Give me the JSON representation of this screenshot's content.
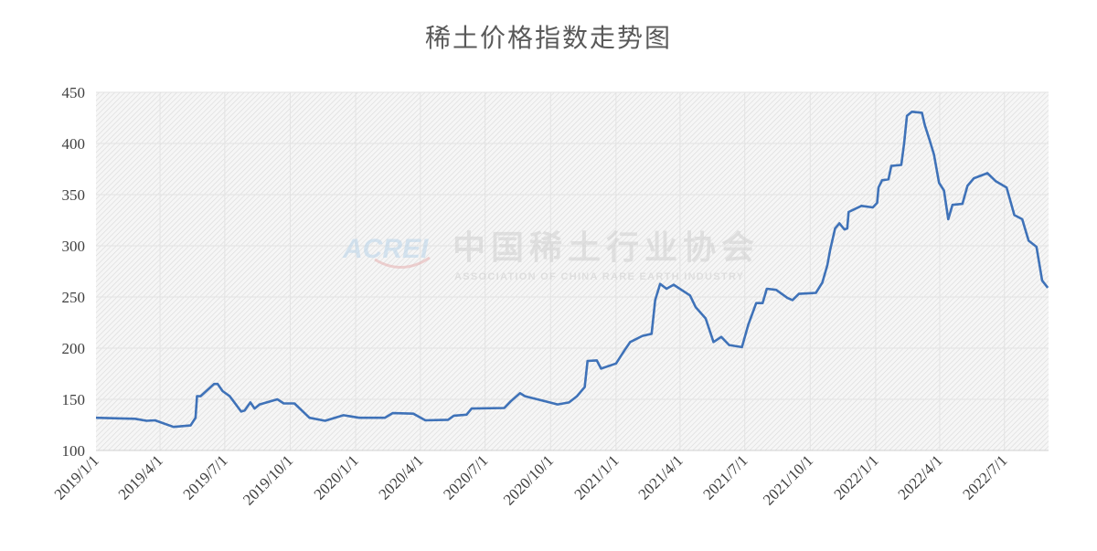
{
  "chart_data": {
    "type": "line",
    "title": "稀土价格指数走势图",
    "xlabel": "",
    "ylabel": "",
    "ylim": [
      100,
      450
    ],
    "yticks": [
      100,
      150,
      200,
      250,
      300,
      350,
      400,
      450
    ],
    "xlim": [
      "2019-01-01",
      "2022-09-01"
    ],
    "xtick_labels": [
      "2019/1/1",
      "2019/4/1",
      "2019/7/1",
      "2019/10/1",
      "2020/1/1",
      "2020/4/1",
      "2020/7/1",
      "2020/10/1",
      "2021/1/1",
      "2021/4/1",
      "2021/7/1",
      "2021/10/1",
      "2022/1/1",
      "2022/4/1",
      "2022/7/1"
    ],
    "grid": true,
    "legend": "none",
    "line_color": "#3f72b8",
    "points": [
      [
        "2019-01-01",
        132
      ],
      [
        "2019-02-25",
        131
      ],
      [
        "2019-03-13",
        129
      ],
      [
        "2019-03-25",
        129.5
      ],
      [
        "2019-04-20",
        123
      ],
      [
        "2019-05-14",
        124.5
      ],
      [
        "2019-05-21",
        132
      ],
      [
        "2019-05-23",
        153
      ],
      [
        "2019-05-28",
        153
      ],
      [
        "2019-06-16",
        165
      ],
      [
        "2019-06-21",
        165
      ],
      [
        "2019-06-28",
        158
      ],
      [
        "2019-07-08",
        153
      ],
      [
        "2019-07-24",
        138
      ],
      [
        "2019-07-29",
        139
      ],
      [
        "2019-08-06",
        147
      ],
      [
        "2019-08-12",
        141
      ],
      [
        "2019-08-19",
        145
      ],
      [
        "2019-09-13",
        150
      ],
      [
        "2019-09-22",
        146
      ],
      [
        "2019-10-07",
        146
      ],
      [
        "2019-10-28",
        132
      ],
      [
        "2019-11-19",
        129
      ],
      [
        "2019-12-15",
        134.5
      ],
      [
        "2020-01-06",
        132
      ],
      [
        "2020-02-11",
        132
      ],
      [
        "2020-02-22",
        136.5
      ],
      [
        "2020-03-22",
        136
      ],
      [
        "2020-04-08",
        129.5
      ],
      [
        "2020-05-10",
        130
      ],
      [
        "2020-05-18",
        134
      ],
      [
        "2020-06-05",
        135
      ],
      [
        "2020-06-12",
        141
      ],
      [
        "2020-07-28",
        141.5
      ],
      [
        "2020-08-06",
        148
      ],
      [
        "2020-08-19",
        156
      ],
      [
        "2020-08-26",
        153
      ],
      [
        "2020-09-24",
        148
      ],
      [
        "2020-10-11",
        145
      ],
      [
        "2020-10-27",
        147
      ],
      [
        "2020-11-07",
        153
      ],
      [
        "2020-11-18",
        162
      ],
      [
        "2020-11-22",
        187.5
      ],
      [
        "2020-12-05",
        188
      ],
      [
        "2020-12-11",
        180
      ],
      [
        "2021-01-01",
        185
      ],
      [
        "2021-01-14",
        199
      ],
      [
        "2021-01-21",
        206
      ],
      [
        "2021-02-07",
        212
      ],
      [
        "2021-02-20",
        214
      ],
      [
        "2021-02-25",
        247
      ],
      [
        "2021-03-04",
        262.8
      ],
      [
        "2021-03-13",
        258
      ],
      [
        "2021-03-23",
        262
      ],
      [
        "2021-04-15",
        251.5
      ],
      [
        "2021-04-23",
        240
      ],
      [
        "2021-05-07",
        229
      ],
      [
        "2021-05-18",
        206
      ],
      [
        "2021-05-29",
        211
      ],
      [
        "2021-06-09",
        203
      ],
      [
        "2021-06-27",
        201
      ],
      [
        "2021-07-06",
        223
      ],
      [
        "2021-07-17",
        244
      ],
      [
        "2021-07-26",
        244
      ],
      [
        "2021-08-01",
        258
      ],
      [
        "2021-08-14",
        257
      ],
      [
        "2021-08-30",
        249
      ],
      [
        "2021-09-06",
        247
      ],
      [
        "2021-09-15",
        253
      ],
      [
        "2021-10-09",
        254
      ],
      [
        "2021-10-18",
        264
      ],
      [
        "2021-10-25",
        281
      ],
      [
        "2021-10-29",
        296
      ],
      [
        "2021-11-05",
        317
      ],
      [
        "2021-11-11",
        322
      ],
      [
        "2021-11-18",
        316
      ],
      [
        "2021-11-22",
        317
      ],
      [
        "2021-11-24",
        333
      ],
      [
        "2021-12-12",
        339
      ],
      [
        "2021-12-28",
        337.5
      ],
      [
        "2022-01-03",
        342
      ],
      [
        "2022-01-05",
        357
      ],
      [
        "2022-01-10",
        364
      ],
      [
        "2022-01-19",
        365
      ],
      [
        "2022-01-23",
        378
      ],
      [
        "2022-02-06",
        379
      ],
      [
        "2022-02-10",
        400
      ],
      [
        "2022-02-14",
        427
      ],
      [
        "2022-02-21",
        431
      ],
      [
        "2022-03-07",
        430
      ],
      [
        "2022-03-11",
        418
      ],
      [
        "2022-03-18",
        403
      ],
      [
        "2022-03-24",
        389
      ],
      [
        "2022-03-31",
        361.6
      ],
      [
        "2022-04-07",
        354
      ],
      [
        "2022-04-13",
        326
      ],
      [
        "2022-04-19",
        340
      ],
      [
        "2022-05-03",
        341
      ],
      [
        "2022-05-10",
        358.6
      ],
      [
        "2022-05-19",
        366
      ],
      [
        "2022-06-07",
        371
      ],
      [
        "2022-06-19",
        363
      ],
      [
        "2022-07-04",
        357
      ],
      [
        "2022-07-15",
        330
      ],
      [
        "2022-07-26",
        326
      ],
      [
        "2022-08-04",
        305
      ],
      [
        "2022-08-15",
        299
      ],
      [
        "2022-08-23",
        266
      ],
      [
        "2022-08-31",
        259
      ]
    ]
  },
  "watermark": {
    "logo": "ACREI",
    "name_cn": "中国稀土行业协会",
    "name_en": "ASSOCIATION OF CHINA RARE EARTH INDUSTRY"
  }
}
